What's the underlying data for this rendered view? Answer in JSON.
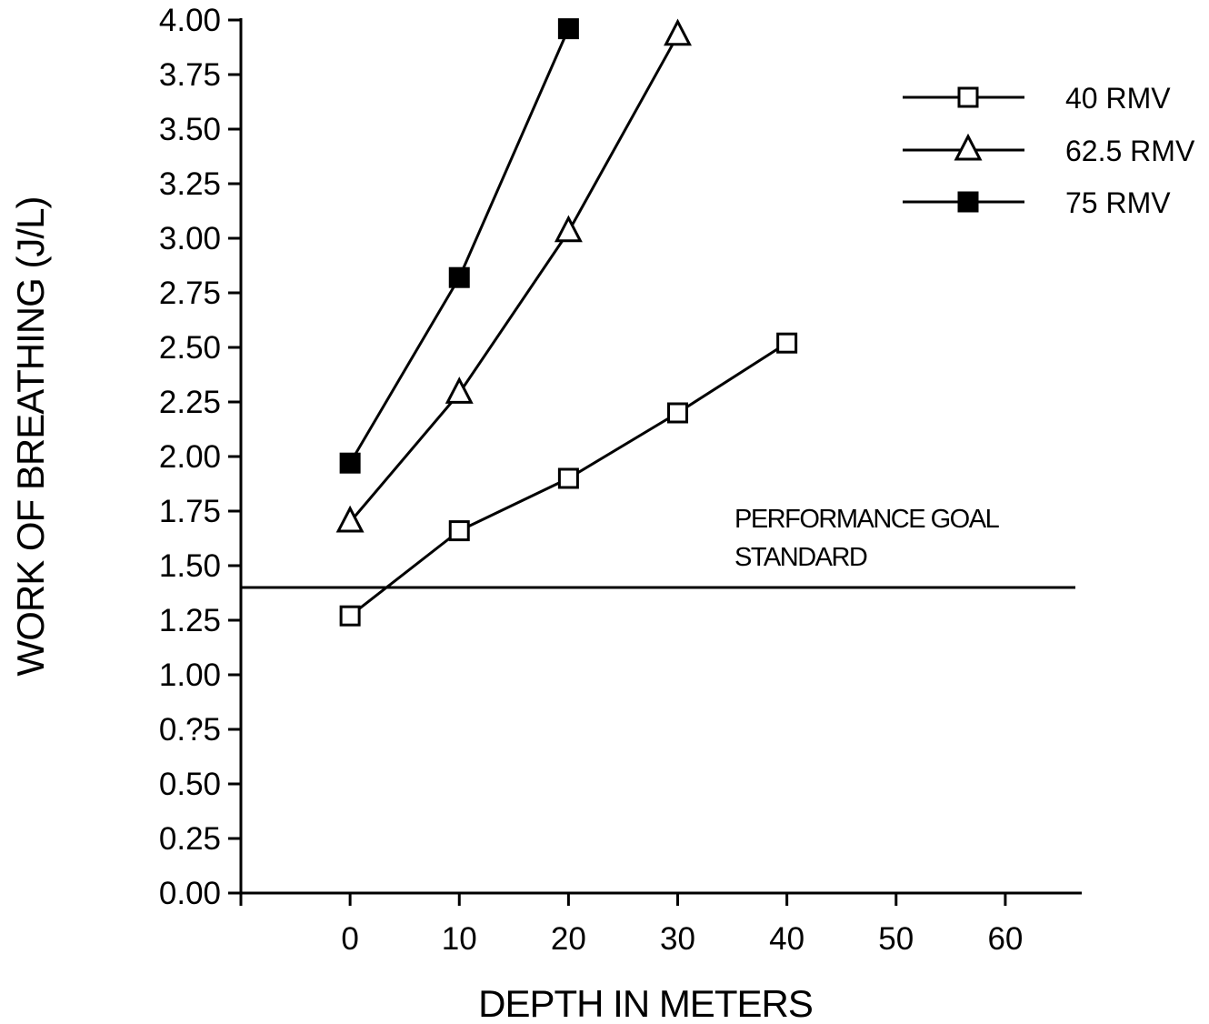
{
  "chart_data": {
    "type": "line",
    "title": "",
    "xlabel": "DEPTH IN METERS",
    "ylabel": "WORK OF BREATHING  (J/L)",
    "xlim": [
      -10,
      67
    ],
    "ylim": [
      0,
      4
    ],
    "xticks": [
      0,
      10,
      20,
      30,
      40,
      50,
      60
    ],
    "xtick_labels": [
      "0",
      "10",
      "20",
      "30",
      "40",
      "50",
      "60"
    ],
    "yticks": [
      0,
      0.25,
      0.5,
      0.75,
      1.0,
      1.25,
      1.5,
      1.75,
      2.0,
      2.25,
      2.5,
      2.75,
      3.0,
      3.25,
      3.5,
      3.75,
      4.0
    ],
    "ytick_labels": [
      "0.00",
      "0.25",
      "0.50",
      "0.?5",
      "1.00",
      "1.25",
      "1.50",
      "1.75",
      "2.00",
      "2.25",
      "2.50",
      "2.75",
      "3.00",
      "3.25",
      "3.50",
      "3.75",
      "4.00"
    ],
    "grid": false,
    "legend_position": "top-right",
    "series": [
      {
        "name": "40 RMV",
        "marker": "open-square",
        "x": [
          0,
          10,
          20,
          30,
          40
        ],
        "y": [
          1.27,
          1.66,
          1.9,
          2.2,
          2.52
        ]
      },
      {
        "name": "62.5 RMV",
        "marker": "open-triangle",
        "x": [
          0,
          10,
          20,
          30
        ],
        "y": [
          1.7,
          2.29,
          3.03,
          3.93
        ]
      },
      {
        "name": "75 RMV",
        "marker": "filled-square",
        "x": [
          0,
          10,
          20
        ],
        "y": [
          1.97,
          2.82,
          3.96
        ]
      }
    ],
    "reference_line": {
      "y": 1.4,
      "label_lines": [
        "PERFORMANCE GOAL",
        "STANDARD"
      ]
    },
    "colors": {
      "line": "#000000",
      "background": "#ffffff"
    }
  }
}
